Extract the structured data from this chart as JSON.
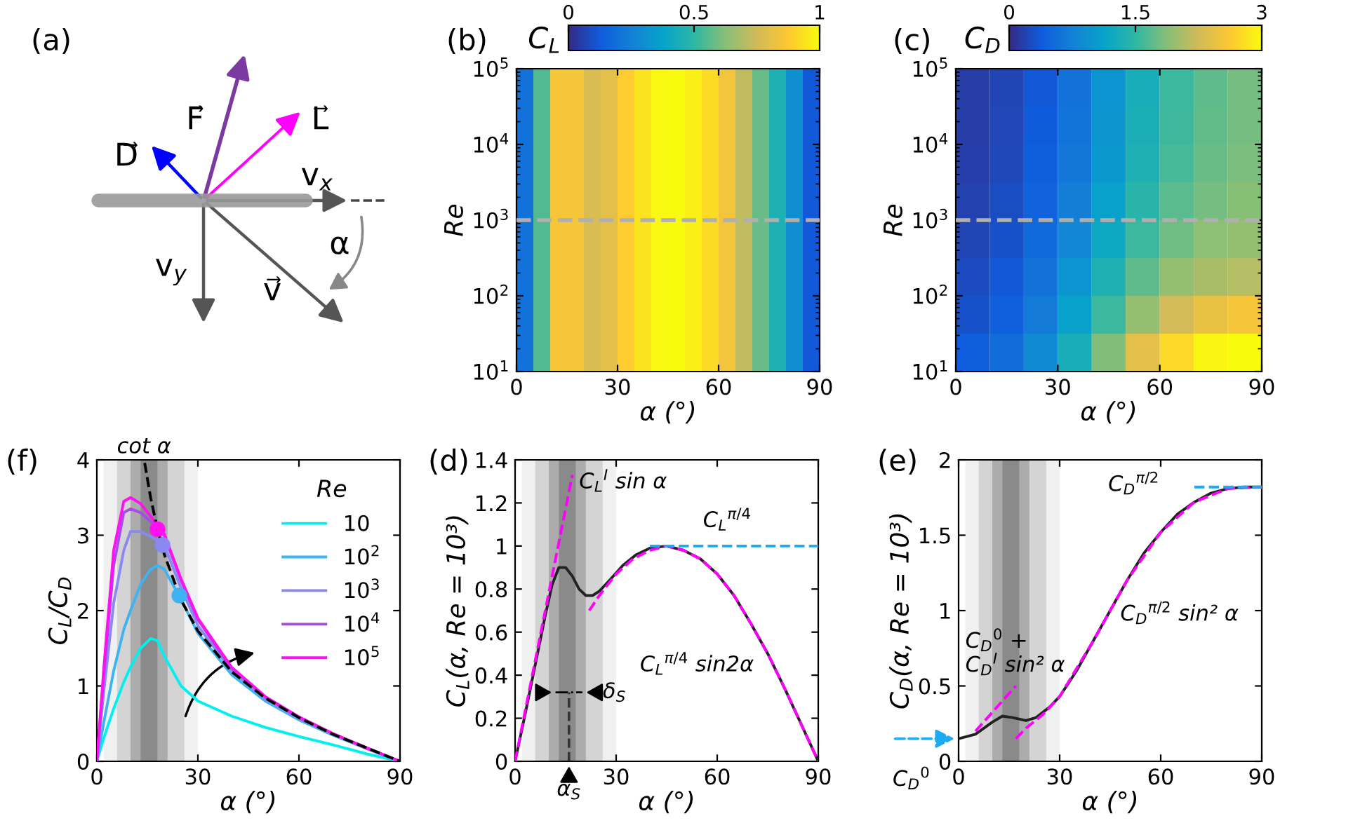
{
  "chart_data": [
    {
      "type": "other",
      "title": "(a)",
      "annotations": [
        "D⃗",
        "F⃗",
        "L⃗",
        "v$_{x}$",
        "v$_{y}$",
        "v⃗",
        "α"
      ]
    },
    {
      "type": "heatmap",
      "title": "(b)",
      "xlabel": "α (°)",
      "ylabel": "Re",
      "clabel": "C$_{L}$",
      "log": "y",
      "x": [
        2.5,
        7.5,
        12.5,
        17.5,
        22.5,
        27.5,
        32.5,
        37.5,
        42.5,
        47.5,
        52.5,
        57.5,
        62.5,
        67.5,
        72.5,
        77.5,
        82.5,
        87.5
      ],
      "y": [
        31623,
        3162,
        316,
        31.6
      ],
      "cells": [
        [
          0.2,
          0.55,
          0.85,
          0.85,
          0.77,
          0.8,
          0.88,
          0.94,
          0.99,
          1.0,
          0.97,
          0.92,
          0.84,
          0.72,
          0.58,
          0.45,
          0.3,
          0.12
        ],
        [
          0.2,
          0.55,
          0.85,
          0.85,
          0.77,
          0.8,
          0.88,
          0.94,
          0.99,
          1.0,
          0.97,
          0.92,
          0.84,
          0.72,
          0.58,
          0.45,
          0.3,
          0.12
        ],
        [
          0.2,
          0.55,
          0.85,
          0.85,
          0.77,
          0.8,
          0.88,
          0.94,
          0.99,
          1.0,
          0.97,
          0.92,
          0.84,
          0.72,
          0.58,
          0.45,
          0.3,
          0.12
        ],
        [
          0.2,
          0.55,
          0.85,
          0.85,
          0.77,
          0.8,
          0.88,
          0.94,
          0.99,
          1.0,
          0.97,
          0.92,
          0.84,
          0.72,
          0.58,
          0.45,
          0.3,
          0.12
        ]
      ],
      "clim": [
        0,
        1
      ],
      "cticks": [
        0,
        0.5,
        1
      ],
      "xlim": [
        0,
        90
      ],
      "xticks": [
        0,
        30,
        60,
        90
      ],
      "ylim": [
        10,
        100000
      ],
      "yticks": [
        {
          "value": 10,
          "label": "10$^{1}$"
        },
        {
          "value": 100,
          "label": "10$^{2}$"
        },
        {
          "value": 1000,
          "label": "10$^{3}$"
        },
        {
          "value": 10000,
          "label": "10$^{4}$"
        },
        {
          "value": 100000,
          "label": "10$^{5}$"
        }
      ],
      "ref_lines": [
        {
          "axis": "y",
          "value": 1000,
          "color": "#b0b0b0",
          "line_style": "dashed"
        }
      ]
    },
    {
      "type": "heatmap",
      "title": "(c)",
      "xlabel": "α (°)",
      "ylabel": "Re",
      "clabel": "C$_{D}$",
      "log": "y",
      "x": [
        5,
        15,
        25,
        35,
        45,
        55,
        65,
        75,
        85
      ],
      "y": [
        56234,
        17783,
        5623,
        1778,
        562,
        178,
        56.2,
        17.8
      ],
      "cells": [
        [
          0.15,
          0.2,
          0.35,
          0.6,
          0.95,
          1.3,
          1.55,
          1.7,
          1.8
        ],
        [
          0.15,
          0.22,
          0.37,
          0.62,
          0.97,
          1.32,
          1.57,
          1.72,
          1.8
        ],
        [
          0.16,
          0.23,
          0.4,
          0.65,
          1.0,
          1.35,
          1.6,
          1.75,
          1.82
        ],
        [
          0.18,
          0.26,
          0.45,
          0.72,
          1.1,
          1.45,
          1.68,
          1.8,
          1.88
        ],
        [
          0.2,
          0.3,
          0.52,
          0.82,
          1.2,
          1.55,
          1.78,
          1.9,
          1.95
        ],
        [
          0.25,
          0.35,
          0.6,
          0.95,
          1.35,
          1.7,
          1.95,
          2.05,
          2.1
        ],
        [
          0.3,
          0.42,
          0.7,
          1.1,
          1.55,
          1.95,
          2.25,
          2.45,
          2.55
        ],
        [
          0.4,
          0.55,
          0.85,
          1.3,
          1.85,
          2.4,
          2.75,
          2.95,
          3.0
        ]
      ],
      "clim": [
        0,
        3
      ],
      "cticks": [
        0,
        1.5,
        3
      ],
      "xlim": [
        0,
        90
      ],
      "xticks": [
        0,
        30,
        60,
        90
      ],
      "ylim": [
        10,
        100000
      ],
      "yticks": [
        {
          "value": 10,
          "label": "10$^{1}$"
        },
        {
          "value": 100,
          "label": "10$^{2}$"
        },
        {
          "value": 1000,
          "label": "10$^{3}$"
        },
        {
          "value": 10000,
          "label": "10$^{4}$"
        },
        {
          "value": 100000,
          "label": "10$^{5}$"
        }
      ],
      "ref_lines": [
        {
          "axis": "y",
          "value": 1000,
          "color": "#b0b0b0",
          "line_style": "dashed"
        }
      ]
    },
    {
      "type": "line",
      "title": "(f)",
      "xlabel": "α (°)",
      "ylabel": "C$_{L}$/C$_{D}$",
      "legend_title": "Re",
      "legend": "top right",
      "xlim": [
        0,
        90
      ],
      "xticks": [
        0,
        30,
        60,
        90
      ],
      "ylim": [
        0,
        4
      ],
      "yticks": [
        0,
        1,
        2,
        3,
        4
      ],
      "bands": [
        {
          "axis": "x",
          "from": 2,
          "to": 30,
          "color": "#f0f0f0"
        },
        {
          "axis": "x",
          "from": 6,
          "to": 26,
          "color": "#d4d4d4"
        },
        {
          "axis": "x",
          "from": 10,
          "to": 21,
          "color": "#acacac"
        },
        {
          "axis": "x",
          "from": 13,
          "to": 18,
          "color": "#8a8a8a"
        }
      ],
      "x": [
        0,
        2,
        5,
        8,
        10,
        13,
        16,
        18,
        20,
        25,
        30,
        40,
        50,
        60,
        70,
        80,
        90
      ],
      "series": [
        {
          "name": "10",
          "color": "#00f0f0",
          "values": [
            0,
            0.3,
            0.7,
            1.05,
            1.25,
            1.5,
            1.63,
            1.6,
            1.4,
            1.0,
            0.8,
            0.6,
            0.45,
            0.33,
            0.22,
            0.1,
            0
          ]
        },
        {
          "name": "10$^{2}$",
          "color": "#3db3f2",
          "values": [
            0,
            0.5,
            1.2,
            1.75,
            2.0,
            2.35,
            2.55,
            2.6,
            2.55,
            2.15,
            1.7,
            1.15,
            0.8,
            0.55,
            0.35,
            0.17,
            0
          ]
        },
        {
          "name": "10$^{3}$",
          "color": "#8a88f2",
          "values": [
            0,
            0.9,
            2.1,
            2.8,
            3.05,
            3.05,
            2.98,
            2.93,
            2.87,
            2.3,
            1.8,
            1.2,
            0.83,
            0.57,
            0.36,
            0.17,
            0
          ]
        },
        {
          "name": "10$^{4}$",
          "color": "#a64be6",
          "values": [
            0,
            1.1,
            2.6,
            3.3,
            3.35,
            3.3,
            3.18,
            3.1,
            3.0,
            2.4,
            1.88,
            1.23,
            0.85,
            0.58,
            0.37,
            0.18,
            0
          ]
        },
        {
          "name": "10$^{5}$",
          "color": "#ff10f0",
          "values": [
            0,
            1.2,
            2.8,
            3.45,
            3.5,
            3.42,
            3.25,
            3.12,
            3.02,
            2.42,
            1.9,
            1.25,
            0.86,
            0.59,
            0.37,
            0.18,
            0
          ]
        },
        {
          "type": "line",
          "line_style": "dashed",
          "color": "#000000",
          "x": [
            14.2,
            16,
            18,
            20,
            25,
            30,
            40,
            50,
            60,
            70,
            80,
            90
          ],
          "values": [
            3.96,
            3.49,
            3.08,
            2.75,
            2.14,
            1.73,
            1.19,
            0.84,
            0.58,
            0.36,
            0.18,
            0
          ]
        },
        {
          "type": "scatter",
          "marker": "circle",
          "color": "#ff10f0",
          "colors": [
            "#ff10f0",
            "#8a88f2",
            "#3db3f2"
          ],
          "x": [
            18,
            19.5,
            24.5
          ],
          "values": [
            3.08,
            2.87,
            2.2
          ]
        }
      ],
      "annotations": [
        "cot α"
      ]
    },
    {
      "type": "line",
      "title": "(d)",
      "xlabel": "α (°)",
      "ylabel": "C$_{L}$(α, Re = 10³)",
      "xlim": [
        0,
        90
      ],
      "xticks": [
        0,
        30,
        60,
        90
      ],
      "ylim": [
        0,
        1.4
      ],
      "yticks": [
        0,
        0.2,
        0.4,
        0.6,
        0.8,
        1,
        1.2,
        1.4
      ],
      "bands": [
        {
          "axis": "x",
          "from": 2,
          "to": 30,
          "color": "#f0f0f0"
        },
        {
          "axis": "x",
          "from": 6,
          "to": 26,
          "color": "#d4d4d4"
        },
        {
          "axis": "x",
          "from": 10,
          "to": 21,
          "color": "#acacac"
        },
        {
          "axis": "x",
          "from": 13,
          "to": 18,
          "color": "#8a8a8a"
        }
      ],
      "series": [
        {
          "color": "#222222",
          "x": [
            0,
            3,
            6,
            9,
            11,
            13,
            15,
            17,
            19,
            21,
            23,
            25,
            28,
            32,
            36,
            40,
            45,
            50,
            55,
            60,
            65,
            70,
            75,
            80,
            85,
            90
          ],
          "values": [
            0,
            0.22,
            0.45,
            0.68,
            0.82,
            0.9,
            0.9,
            0.86,
            0.8,
            0.77,
            0.77,
            0.79,
            0.84,
            0.91,
            0.96,
            0.99,
            1.0,
            0.98,
            0.94,
            0.87,
            0.77,
            0.64,
            0.5,
            0.34,
            0.17,
            0
          ]
        },
        {
          "color": "#ff00ff",
          "line_style": "dashed",
          "x": [
            0,
            17
          ],
          "values": [
            0,
            1.33
          ]
        },
        {
          "color": "#ff00ff",
          "line_style": "dashed",
          "x": [
            22,
            25,
            30,
            35,
            40,
            45,
            50,
            55,
            60,
            65,
            70,
            75,
            80,
            85,
            90
          ],
          "values": [
            0.7,
            0.77,
            0.87,
            0.94,
            0.98,
            1.0,
            0.98,
            0.94,
            0.87,
            0.77,
            0.64,
            0.5,
            0.34,
            0.17,
            0
          ]
        },
        {
          "color": "#1eaaf0",
          "line_style": "dashed",
          "x": [
            40,
            90
          ],
          "values": [
            1,
            1
          ]
        }
      ],
      "annotations": [
        "C$_{L}$$^{I}$ sin α",
        "C$_{L}$$^{π/4}$",
        "C$_{L}$$^{π/4}$ sin2α",
        "δ$_{S}$",
        "α$_{S}$"
      ]
    },
    {
      "type": "line",
      "title": "(e)",
      "xlabel": "α (°)",
      "ylabel": "C$_{D}$(α, Re = 10³)",
      "xlim": [
        0,
        90
      ],
      "xticks": [
        0,
        30,
        60,
        90
      ],
      "ylim": [
        0,
        2
      ],
      "yticks": [
        0,
        0.5,
        1,
        1.5,
        2
      ],
      "bands": [
        {
          "axis": "x",
          "from": 2,
          "to": 30,
          "color": "#f0f0f0"
        },
        {
          "axis": "x",
          "from": 6,
          "to": 26,
          "color": "#d4d4d4"
        },
        {
          "axis": "x",
          "from": 10,
          "to": 21,
          "color": "#acacac"
        },
        {
          "axis": "x",
          "from": 13,
          "to": 18,
          "color": "#8a8a8a"
        }
      ],
      "series": [
        {
          "color": "#222222",
          "x": [
            0,
            5,
            10,
            13,
            16,
            20,
            23,
            27,
            30,
            35,
            40,
            45,
            50,
            55,
            60,
            65,
            70,
            75,
            80,
            85,
            90
          ],
          "values": [
            0.15,
            0.18,
            0.26,
            0.3,
            0.29,
            0.27,
            0.29,
            0.36,
            0.43,
            0.6,
            0.8,
            1.0,
            1.2,
            1.38,
            1.52,
            1.64,
            1.72,
            1.78,
            1.81,
            1.82,
            1.82
          ]
        },
        {
          "color": "#ff00ff",
          "line_style": "dashed",
          "x": [
            5,
            17
          ],
          "values": [
            0.2,
            0.5
          ]
        },
        {
          "color": "#ff00ff",
          "line_style": "dashed",
          "x": [
            17,
            20,
            25,
            30,
            40,
            50,
            60,
            70,
            80,
            90
          ],
          "values": [
            0.15,
            0.22,
            0.31,
            0.43,
            0.8,
            1.2,
            1.52,
            1.72,
            1.81,
            1.82
          ]
        },
        {
          "color": "#1eaaf0",
          "line_style": "dashed",
          "x": [
            70,
            90
          ],
          "values": [
            1.82,
            1.82
          ]
        }
      ],
      "annotations": [
        "C$_{D}$$^{0}$ +",
        "C$_{D}$$^{I}$ sin² α",
        "C$_{D}$$^{π/2}$ sin² α",
        "C$_{D}$$^{π/2}$",
        "C$_{D}$$^{0}$"
      ]
    }
  ]
}
